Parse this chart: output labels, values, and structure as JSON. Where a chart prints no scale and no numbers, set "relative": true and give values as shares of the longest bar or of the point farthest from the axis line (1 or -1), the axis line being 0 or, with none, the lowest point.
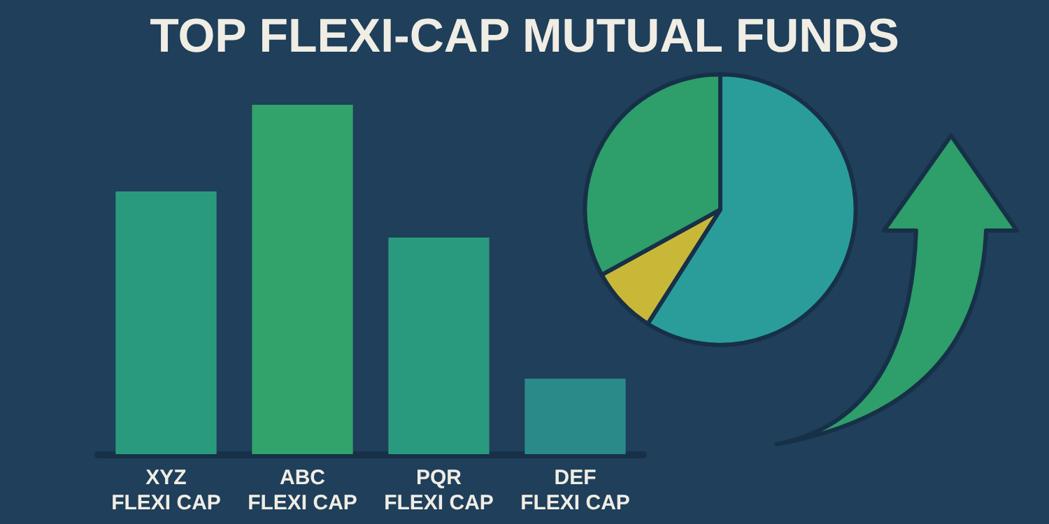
{
  "chart_data": [
    {
      "type": "bar",
      "title": "TOP FLEXI-CAP MUTUAL FUNDS",
      "categories": [
        "XYZ\nFLEXI CAP",
        "ABC\nFLEXI CAP",
        "PQR\nFLEXI CAP",
        "DEF\nFLEXI CAP"
      ],
      "values": [
        0.752,
        1,
        0.62,
        0.216
      ],
      "colors": [
        "#2a9a7e",
        "#32a36b",
        "#2a9a7e",
        "#2a8a8a"
      ],
      "relative": true
    },
    {
      "type": "pie",
      "categories": [
        null,
        null,
        null
      ],
      "values": [
        59,
        8,
        33
      ],
      "colors": [
        "#2a9d9a",
        "#c9b838",
        "#2e9e6a"
      ]
    }
  ]
}
